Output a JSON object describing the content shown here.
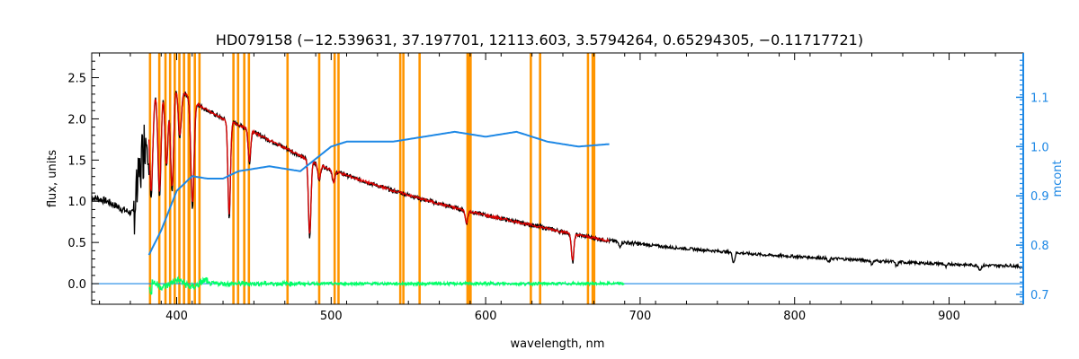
{
  "chart_data": {
    "type": "line",
    "title": "HD079158    (−12.539631, 37.197701, 12113.603, 3.5794264, 0.65294305, −0.11717721)",
    "xlabel": "wavelength, nm",
    "ylabel": "flux, units",
    "y2label": "mcont",
    "xlim": [
      345,
      948
    ],
    "ylim": [
      -0.25,
      2.8
    ],
    "y2lim": [
      0.68,
      1.19
    ],
    "xticks": [
      400,
      500,
      600,
      700,
      800,
      900
    ],
    "yticks": [
      0.0,
      0.5,
      1.0,
      1.5,
      2.0,
      2.5
    ],
    "y2ticks": [
      0.7,
      0.8,
      0.9,
      1.0,
      1.1
    ],
    "y2tick_labels": [
      "0.7",
      "0.8",
      "0.9",
      "1.0",
      "1.1"
    ],
    "ytick_labels": [
      "0.0",
      "0.5",
      "1.0",
      "1.5",
      "2.0",
      "2.5"
    ],
    "xtick_labels": [
      "400",
      "500",
      "600",
      "700",
      "800",
      "900"
    ],
    "masked_regions_nm": [
      [
        382,
        383.5
      ],
      [
        388,
        389.5
      ],
      [
        392,
        393.5
      ],
      [
        395,
        396.5
      ],
      [
        398,
        399.5
      ],
      [
        401,
        402.5
      ],
      [
        404,
        405.5
      ],
      [
        407,
        409
      ],
      [
        411,
        412.5
      ],
      [
        414,
        415.5
      ],
      [
        436,
        437.5
      ],
      [
        439,
        440.5
      ],
      [
        443,
        444.5
      ],
      [
        446,
        447.5
      ],
      [
        471,
        472.5
      ],
      [
        491.5,
        493
      ],
      [
        501.5,
        503
      ],
      [
        504,
        505.5
      ],
      [
        544,
        545.5
      ],
      [
        546,
        547.5
      ],
      [
        556.5,
        558
      ],
      [
        587.5,
        591
      ],
      [
        628.5,
        630
      ],
      [
        634.5,
        636
      ],
      [
        665.5,
        667
      ],
      [
        668.5,
        671
      ]
    ],
    "series": [
      {
        "key": "observed",
        "color": "#000000",
        "x": [
          345,
          355,
          365,
          372,
          375,
          378,
          380,
          383,
          386,
          390,
          395,
          400,
          405,
          410,
          420,
          430,
          440,
          450,
          460,
          470,
          480,
          490,
          500,
          520,
          540,
          560,
          580,
          600,
          620,
          640,
          660,
          680,
          700,
          720,
          740,
          760,
          780,
          800,
          820,
          840,
          860,
          880,
          900,
          920,
          940,
          948
        ],
        "y": [
          1.05,
          1.0,
          0.9,
          0.85,
          1.2,
          1.6,
          1.8,
          2.1,
          2.3,
          2.38,
          2.42,
          2.4,
          2.32,
          2.22,
          2.1,
          2.0,
          1.93,
          1.84,
          1.74,
          1.65,
          1.55,
          1.46,
          1.38,
          1.25,
          1.13,
          1.02,
          0.92,
          0.83,
          0.75,
          0.67,
          0.59,
          0.52,
          0.48,
          0.44,
          0.41,
          0.38,
          0.35,
          0.33,
          0.31,
          0.29,
          0.27,
          0.25,
          0.24,
          0.22,
          0.22,
          0.2
        ]
      },
      {
        "key": "model",
        "color": "#dd0000",
        "x": [
          382,
          386,
          390,
          395,
          400,
          405,
          410,
          420,
          430,
          440,
          450,
          460,
          470,
          480,
          490,
          500,
          520,
          540,
          560,
          580,
          600,
          620,
          640,
          660,
          680
        ],
        "y": [
          2.1,
          2.3,
          2.38,
          2.42,
          2.4,
          2.32,
          2.22,
          2.1,
          2.0,
          1.93,
          1.84,
          1.74,
          1.65,
          1.55,
          1.46,
          1.38,
          1.25,
          1.13,
          1.02,
          0.92,
          0.83,
          0.75,
          0.67,
          0.59,
          0.52
        ]
      },
      {
        "key": "residual",
        "color": "#00ff66",
        "x": [
          382,
          690
        ],
        "y": [
          0.0,
          0.0
        ]
      },
      {
        "key": "zero_line",
        "color": "#1e88e5",
        "x": [
          345,
          948
        ],
        "y": [
          0.0,
          0.0
        ]
      },
      {
        "key": "mcont",
        "axis": "right",
        "color": "#1e88e5",
        "x": [
          382,
          390,
          400,
          410,
          420,
          430,
          440,
          450,
          460,
          470,
          480,
          490,
          500,
          510,
          520,
          540,
          560,
          580,
          600,
          620,
          640,
          660,
          680
        ],
        "y": [
          0.78,
          0.83,
          0.91,
          0.94,
          0.935,
          0.935,
          0.95,
          0.955,
          0.96,
          0.955,
          0.95,
          0.975,
          1.0,
          1.01,
          1.01,
          1.01,
          1.02,
          1.03,
          1.02,
          1.03,
          1.01,
          1.0,
          1.005
        ]
      }
    ],
    "line_features": [
      {
        "x": 383.5,
        "depth": 1.1
      },
      {
        "x": 388.9,
        "depth": 1.3
      },
      {
        "x": 393.4,
        "depth": 1.0
      },
      {
        "x": 397.0,
        "depth": 1.3
      },
      {
        "x": 402.0,
        "depth": 0.6
      },
      {
        "x": 410.2,
        "depth": 1.3
      },
      {
        "x": 434.0,
        "depth": 1.2
      },
      {
        "x": 447.1,
        "depth": 0.4
      },
      {
        "x": 486.1,
        "depth": 0.95
      },
      {
        "x": 492.2,
        "depth": 0.2
      },
      {
        "x": 501.6,
        "depth": 0.15
      },
      {
        "x": 587.6,
        "depth": 0.15
      },
      {
        "x": 656.3,
        "depth": 0.35
      },
      {
        "x": 686.7,
        "depth": 0.05
      },
      {
        "x": 760.5,
        "depth": 0.12
      },
      {
        "x": 822.0,
        "depth": 0.05
      },
      {
        "x": 850.0,
        "depth": 0.04
      },
      {
        "x": 866.0,
        "depth": 0.05
      },
      {
        "x": 898.0,
        "depth": 0.04
      },
      {
        "x": 920.0,
        "depth": 0.05
      }
    ],
    "grid": false
  }
}
